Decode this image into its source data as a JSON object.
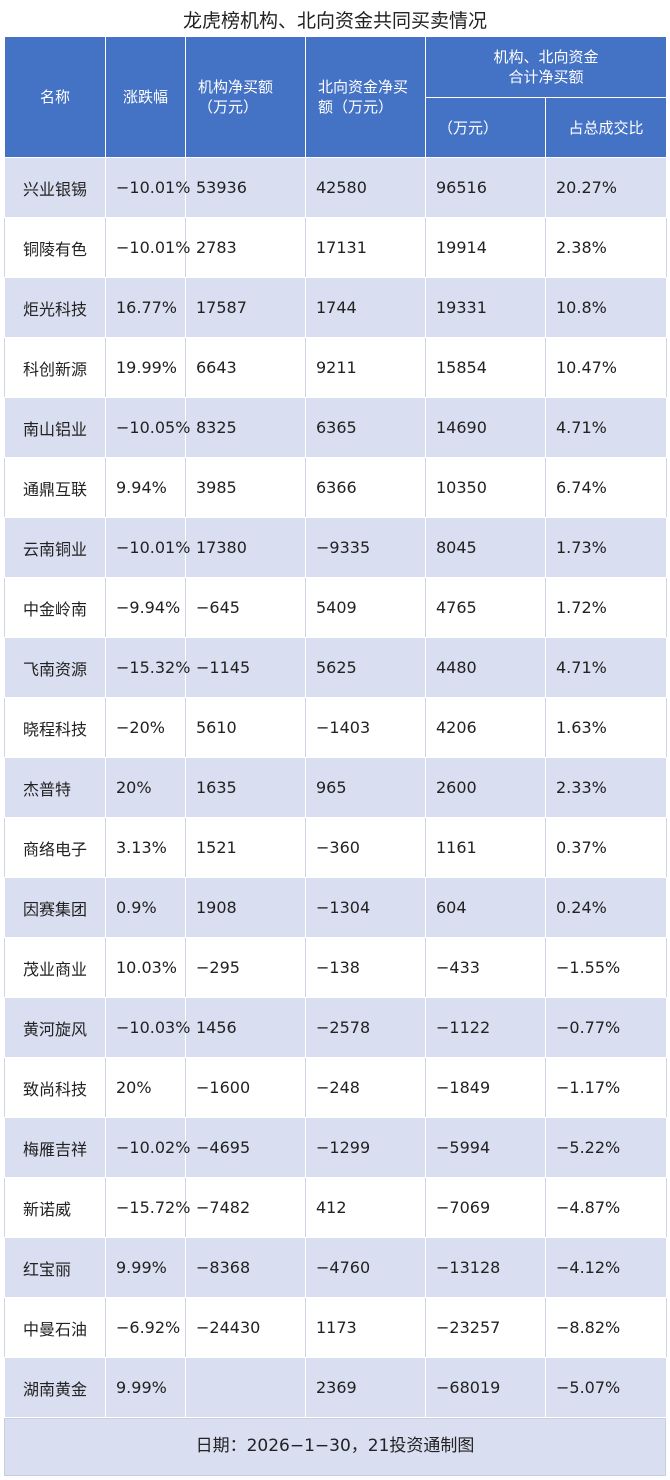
{
  "title": "龙虎榜机构、北向资金共同买卖情况",
  "header": {
    "name": "名称",
    "change": "涨跌幅",
    "inst_net": "机构净买额\n（万元）",
    "north_net": "北向资金净买\n额（万元）",
    "combined_group": "机构、北向资金\n合计净买额",
    "combined_unit": "（万元）",
    "ratio": "占总成交比"
  },
  "rows": [
    {
      "name": "兴业银锡",
      "change": "−10.01%",
      "inst": "53936",
      "north": "42580",
      "total": "96516",
      "ratio": "20.27%"
    },
    {
      "name": "铜陵有色",
      "change": "−10.01%",
      "inst": "2783",
      "north": "17131",
      "total": "19914",
      "ratio": "2.38%"
    },
    {
      "name": "炬光科技",
      "change": "16.77%",
      "inst": "17587",
      "north": "1744",
      "total": "19331",
      "ratio": "10.8%"
    },
    {
      "name": "科创新源",
      "change": "19.99%",
      "inst": "6643",
      "north": "9211",
      "total": "15854",
      "ratio": "10.47%"
    },
    {
      "name": "南山铝业",
      "change": "−10.05%",
      "inst": "8325",
      "north": "6365",
      "total": "14690",
      "ratio": "4.71%"
    },
    {
      "name": "通鼎互联",
      "change": "9.94%",
      "inst": "3985",
      "north": "6366",
      "total": "10350",
      "ratio": "6.74%"
    },
    {
      "name": "云南铜业",
      "change": "−10.01%",
      "inst": "17380",
      "north": "−9335",
      "total": "8045",
      "ratio": "1.73%"
    },
    {
      "name": "中金岭南",
      "change": "−9.94%",
      "inst": "−645",
      "north": "5409",
      "total": "4765",
      "ratio": "1.72%"
    },
    {
      "name": "飞南资源",
      "change": "−15.32%",
      "inst": "−1145",
      "north": "5625",
      "total": "4480",
      "ratio": "4.71%"
    },
    {
      "name": "晓程科技",
      "change": "−20%",
      "inst": "5610",
      "north": "−1403",
      "total": "4206",
      "ratio": "1.63%"
    },
    {
      "name": "杰普特",
      "change": "20%",
      "inst": "1635",
      "north": "965",
      "total": "2600",
      "ratio": "2.33%"
    },
    {
      "name": "商络电子",
      "change": "3.13%",
      "inst": "1521",
      "north": "−360",
      "total": "1161",
      "ratio": "0.37%"
    },
    {
      "name": "因赛集团",
      "change": "0.9%",
      "inst": "1908",
      "north": "−1304",
      "total": "604",
      "ratio": "0.24%"
    },
    {
      "name": "茂业商业",
      "change": "10.03%",
      "inst": "−295",
      "north": "−138",
      "total": "−433",
      "ratio": "−1.55%"
    },
    {
      "name": "黄河旋风",
      "change": "−10.03%",
      "inst": "1456",
      "north": "−2578",
      "total": "−1122",
      "ratio": "−0.77%"
    },
    {
      "name": "致尚科技",
      "change": "20%",
      "inst": "−1600",
      "north": "−248",
      "total": "−1849",
      "ratio": "−1.17%"
    },
    {
      "name": "梅雁吉祥",
      "change": "−10.02%",
      "inst": "−4695",
      "north": "−1299",
      "total": "−5994",
      "ratio": "−5.22%"
    },
    {
      "name": "新诺威",
      "change": "−15.72%",
      "inst": "−7482",
      "north": "412",
      "total": "−7069",
      "ratio": "−4.87%"
    },
    {
      "name": "红宝丽",
      "change": "9.99%",
      "inst": "−8368",
      "north": "−4760",
      "total": "−13128",
      "ratio": "−4.12%"
    },
    {
      "name": "中曼石油",
      "change": "−6.92%",
      "inst": "−24430",
      "north": "1173",
      "total": "−23257",
      "ratio": "−8.82%"
    },
    {
      "name": "湖南黄金",
      "change": "9.99%",
      "inst": "",
      "north": "2369",
      "total": "−68019",
      "ratio": "−5.07%"
    }
  ],
  "footer": "日期：2026−1−30，21投资通制图",
  "colors": {
    "header_bg": "#4472c4",
    "stripe": "#d9def0"
  }
}
